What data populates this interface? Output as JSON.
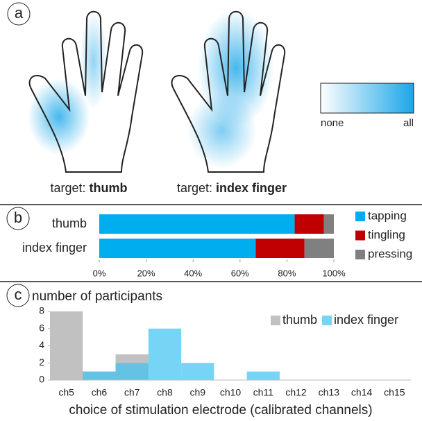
{
  "panel_labels": [
    "a",
    "b",
    "c"
  ],
  "hands": [
    {
      "prefix": "target:",
      "target": "thumb"
    },
    {
      "prefix": "target:",
      "target": "index finger"
    }
  ],
  "intensity_legend": {
    "low": "none",
    "high": "all"
  },
  "chart_data": [
    {
      "type": "bar",
      "orientation": "horizontal",
      "stacked": true,
      "categories": [
        "thumb",
        "index finger"
      ],
      "series": [
        {
          "name": "tapping",
          "color": "#00aeef",
          "values": [
            83.3,
            66.7
          ]
        },
        {
          "name": "tingling",
          "color": "#c00000",
          "values": [
            12.5,
            20.8
          ]
        },
        {
          "name": "pressing",
          "color": "#808080",
          "values": [
            4.2,
            12.5
          ]
        }
      ],
      "xlim": [
        0,
        100
      ],
      "xticks": [
        {
          "value": 0,
          "label": "0%"
        },
        {
          "value": 20,
          "label": "20%"
        },
        {
          "value": 40,
          "label": "40%"
        },
        {
          "value": 60,
          "label": "60%"
        },
        {
          "value": 80,
          "label": "80%"
        },
        {
          "value": 100,
          "label": "100%"
        }
      ],
      "legend": "right"
    },
    {
      "type": "bar",
      "overlay": true,
      "ylabel": "number of participants",
      "xlabel": "choice of stimulation electrode (calibrated channels)",
      "categories": [
        "ch5",
        "ch6",
        "ch7",
        "ch8",
        "ch9",
        "ch10",
        "ch11",
        "ch12",
        "ch13",
        "ch14",
        "ch15"
      ],
      "series": [
        {
          "name": "thumb",
          "color": "#a6a6a6",
          "values": [
            8,
            1,
            3,
            0,
            0,
            0,
            0,
            0,
            0,
            0,
            0
          ]
        },
        {
          "name": "index finger",
          "color": "#3cc3f0",
          "values": [
            0,
            1,
            2,
            6,
            2,
            0,
            1,
            0,
            0,
            0,
            0
          ]
        }
      ],
      "ylim": [
        0,
        8
      ],
      "yticks": [
        0,
        2,
        4,
        6,
        8
      ],
      "legend": "upper right"
    }
  ]
}
